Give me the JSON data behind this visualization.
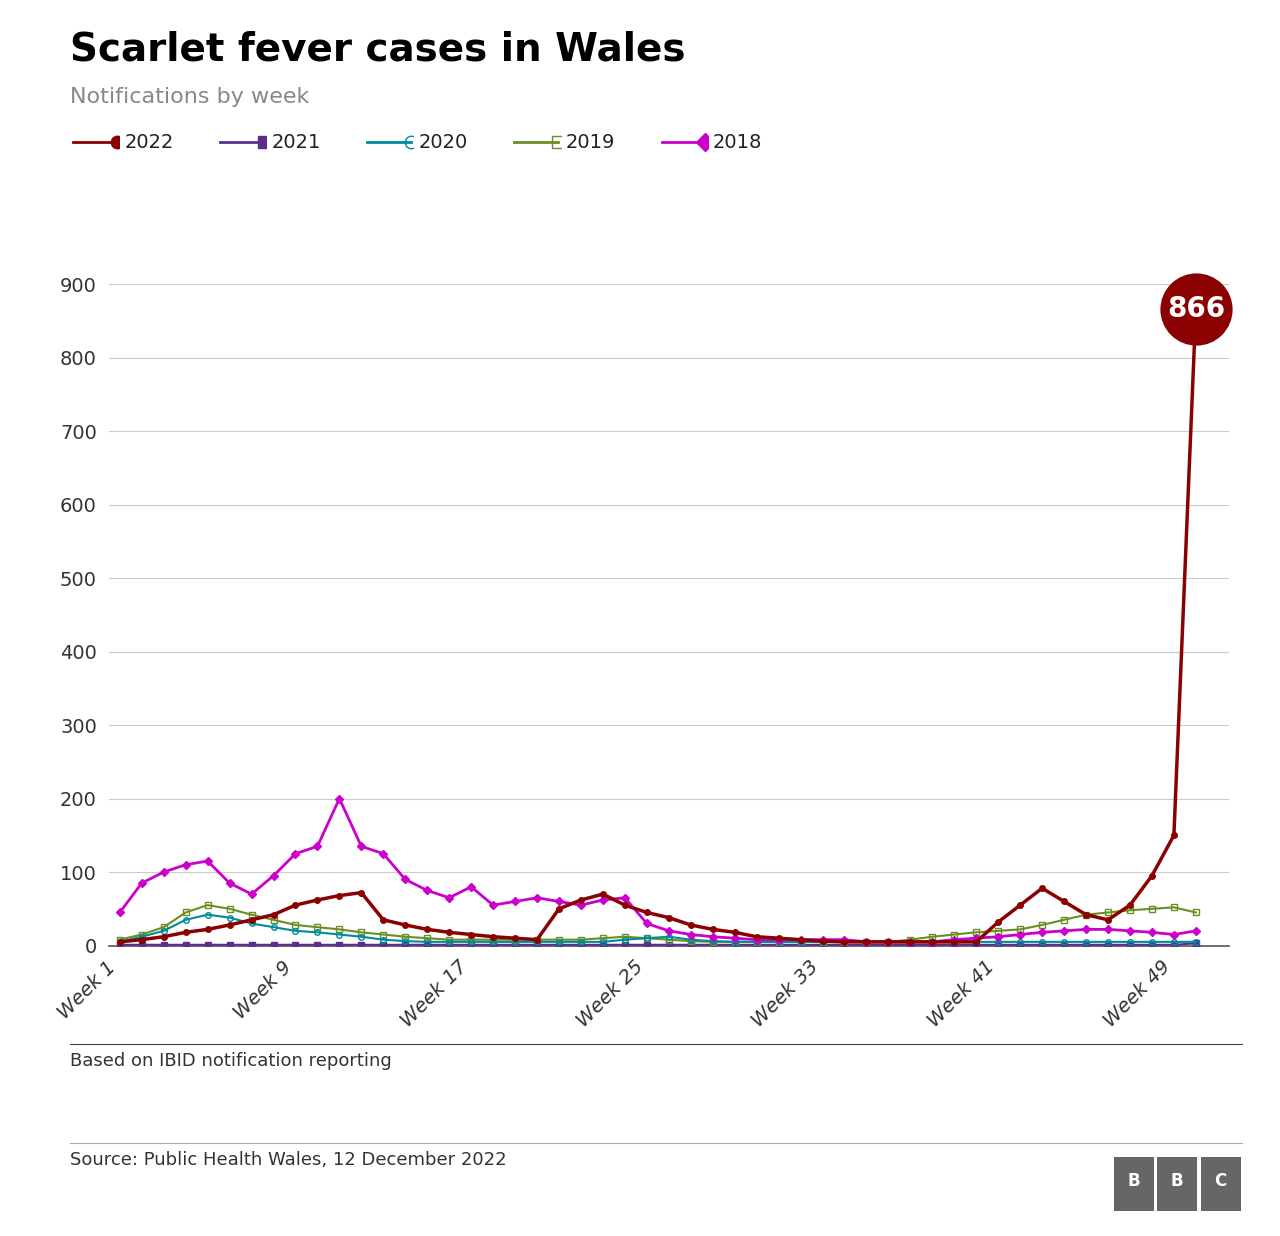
{
  "title": "Scarlet fever cases in Wales",
  "subtitle": "Notifications by week",
  "source_note": "Based on IBID notification reporting",
  "source_line": "Source: Public Health Wales, 12 December 2022",
  "background_color": "#ffffff",
  "grid_color": "#cccccc",
  "x_tick_labels": [
    "Week 1",
    "Week 9",
    "Week 17",
    "Week 25",
    "Week 33",
    "Week 41",
    "Week 49"
  ],
  "x_tick_positions": [
    1,
    9,
    17,
    25,
    33,
    41,
    49
  ],
  "ylim": [
    0,
    900
  ],
  "yticks": [
    0,
    100,
    200,
    300,
    400,
    500,
    600,
    700,
    800,
    900
  ],
  "series": {
    "2022": {
      "color": "#8b0000",
      "marker": "o",
      "marker_face": "filled",
      "linewidth": 2.5,
      "zorder": 5,
      "values": [
        5,
        8,
        12,
        18,
        22,
        28,
        35,
        42,
        55,
        62,
        68,
        72,
        35,
        28,
        22,
        18,
        15,
        12,
        10,
        8,
        50,
        62,
        70,
        55,
        45,
        38,
        28,
        22,
        18,
        12,
        10,
        8,
        6,
        5,
        5,
        5,
        5,
        5,
        5,
        5,
        32,
        55,
        78,
        60,
        42,
        35,
        55,
        95,
        150,
        866
      ]
    },
    "2021": {
      "color": "#5b2d8e",
      "marker": "s",
      "marker_face": "filled",
      "linewidth": 1.5,
      "zorder": 3,
      "values": [
        1,
        1,
        1,
        1,
        1,
        1,
        1,
        1,
        1,
        1,
        1,
        1,
        1,
        1,
        1,
        1,
        1,
        1,
        1,
        1,
        1,
        1,
        1,
        1,
        1,
        1,
        1,
        1,
        1,
        1,
        1,
        1,
        1,
        1,
        1,
        1,
        1,
        1,
        1,
        1,
        1,
        1,
        1,
        1,
        1,
        1,
        1,
        1,
        1,
        3
      ]
    },
    "2020": {
      "color": "#008b9a",
      "marker": "o",
      "marker_face": "none",
      "linewidth": 1.5,
      "zorder": 4,
      "values": [
        5,
        12,
        20,
        35,
        42,
        38,
        30,
        25,
        20,
        18,
        15,
        12,
        8,
        6,
        5,
        5,
        5,
        5,
        5,
        5,
        5,
        5,
        5,
        8,
        10,
        12,
        8,
        6,
        5,
        5,
        5,
        5,
        5,
        5,
        5,
        5,
        5,
        5,
        5,
        5,
        5,
        5,
        5,
        5,
        5,
        5,
        5,
        5,
        5,
        5
      ]
    },
    "2019": {
      "color": "#6b8e23",
      "marker": "s",
      "marker_face": "none",
      "linewidth": 1.5,
      "zorder": 3,
      "values": [
        8,
        15,
        25,
        45,
        55,
        50,
        42,
        35,
        28,
        25,
        22,
        18,
        15,
        12,
        10,
        8,
        8,
        8,
        8,
        8,
        8,
        8,
        10,
        12,
        10,
        8,
        6,
        5,
        5,
        5,
        5,
        5,
        5,
        5,
        5,
        5,
        8,
        12,
        15,
        18,
        20,
        22,
        28,
        35,
        42,
        45,
        48,
        50,
        52,
        45
      ]
    },
    "2018": {
      "color": "#cc00cc",
      "marker": "D",
      "marker_face": "filled",
      "linewidth": 2,
      "zorder": 4,
      "values": [
        45,
        85,
        100,
        110,
        115,
        85,
        70,
        95,
        125,
        135,
        200,
        135,
        125,
        90,
        75,
        65,
        80,
        55,
        60,
        65,
        60,
        55,
        62,
        65,
        30,
        20,
        15,
        12,
        10,
        8,
        8,
        8,
        8,
        8,
        5,
        5,
        5,
        5,
        8,
        10,
        12,
        15,
        18,
        20,
        22,
        22,
        20,
        18,
        15,
        20
      ]
    }
  },
  "annotation_value": 866,
  "annotation_week": 50,
  "annotation_circle_color": "#8b0000",
  "annotation_text_color": "#ffffff",
  "annotation_fontsize": 20,
  "annotation_markersize": 52,
  "legend_order": [
    "2022",
    "2021",
    "2020",
    "2019",
    "2018"
  ],
  "title_fontsize": 28,
  "subtitle_fontsize": 16,
  "tick_fontsize": 14,
  "footer_fontsize": 13
}
